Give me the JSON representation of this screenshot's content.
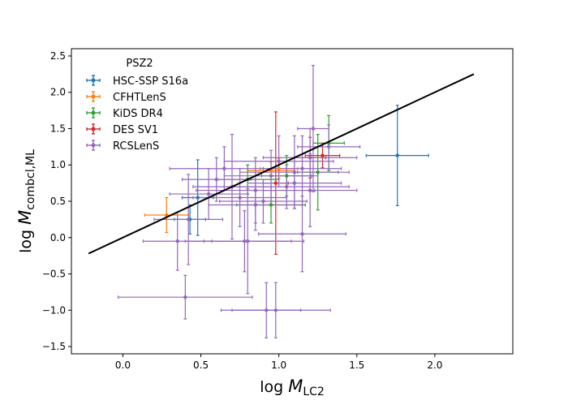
{
  "chart_data": {
    "type": "scatter",
    "title": "",
    "xlabel_main": "log ",
    "xlabel_var": "M",
    "xlabel_sub": "LC2",
    "ylabel_main": "log ",
    "ylabel_var": "M",
    "ylabel_sub": "combcl,ML",
    "xlim": [
      -0.33,
      2.5
    ],
    "ylim": [
      -1.6,
      2.6
    ],
    "xticks": [
      0.0,
      0.5,
      1.0,
      1.5,
      2.0
    ],
    "xtick_labels": [
      "0.0",
      "0.5",
      "1.0",
      "1.5",
      "2.0"
    ],
    "yticks": [
      -1.5,
      -1.0,
      -0.5,
      0.0,
      0.5,
      1.0,
      1.5,
      2.0,
      2.5
    ],
    "ytick_labels": [
      "−1.5",
      "−1.0",
      "−0.5",
      "0.0",
      "0.5",
      "1.0",
      "1.5",
      "2.0",
      "2.5"
    ],
    "grid": false,
    "legend": {
      "title": "PSZ2",
      "placement": "upper-left",
      "entries": [
        "HSC-SSP S16a",
        "CFHTLenS",
        "KiDS DR4",
        "DES SV1",
        "RCSLenS"
      ]
    },
    "reference_line": {
      "x": [
        -0.22,
        2.25
      ],
      "y": [
        -0.22,
        2.25
      ],
      "color": "#000000"
    },
    "series": [
      {
        "name": "HSC-SSP S16a",
        "color": "#1f77b4",
        "points": [
          {
            "x": 1.76,
            "y": 1.13,
            "xerr": 0.2,
            "yerr": 0.69
          },
          {
            "x": 0.48,
            "y": 0.55,
            "xerr": 0.1,
            "yerr": 0.52
          },
          {
            "x": 0.43,
            "y": 0.25,
            "xerr": 0.1,
            "yerr": 0.2
          }
        ]
      },
      {
        "name": "CFHTLenS",
        "color": "#ff7f0e",
        "points": [
          {
            "x": 0.28,
            "y": 0.31,
            "xerr": 0.14,
            "yerr": 0.24
          },
          {
            "x": 0.95,
            "y": 0.92,
            "xerr": 0.15,
            "yerr": 0.12
          },
          {
            "x": 1.0,
            "y": 0.95,
            "xerr": 0.12,
            "yerr": 0.14
          }
        ]
      },
      {
        "name": "KiDS DR4",
        "color": "#2ca02c",
        "points": [
          {
            "x": 0.95,
            "y": 0.45,
            "xerr": 0.22,
            "yerr": 0.25
          },
          {
            "x": 1.25,
            "y": 0.9,
            "xerr": 0.13,
            "yerr": 0.52
          },
          {
            "x": 1.32,
            "y": 1.3,
            "xerr": 0.1,
            "yerr": 0.38
          },
          {
            "x": 1.05,
            "y": 0.85,
            "xerr": 0.16,
            "yerr": 0.28
          },
          {
            "x": 0.8,
            "y": 0.8,
            "xerr": 0.2,
            "yerr": 0.2
          }
        ]
      },
      {
        "name": "DES SV1",
        "color": "#d62728",
        "points": [
          {
            "x": 1.28,
            "y": 1.13,
            "xerr": 0.11,
            "yerr": 0.17
          },
          {
            "x": 0.98,
            "y": 0.75,
            "xerr": 0.08,
            "yerr": 0.98
          },
          {
            "x": 1.2,
            "y": 1.1,
            "xerr": 0.1,
            "yerr": 0.28
          }
        ]
      },
      {
        "name": "RCSLenS",
        "color": "#9467bd",
        "points": [
          {
            "x": 0.4,
            "y": -0.82,
            "xerr": 0.43,
            "yerr": 0.3
          },
          {
            "x": 0.92,
            "y": -1.0,
            "xerr": 0.22,
            "yerr": 0.38
          },
          {
            "x": 0.98,
            "y": -1.0,
            "xerr": 0.35,
            "yerr": 0.38
          },
          {
            "x": 0.35,
            "y": -0.05,
            "xerr": 0.22,
            "yerr": 0.4
          },
          {
            "x": 0.42,
            "y": 0.25,
            "xerr": 0.22,
            "yerr": 0.62
          },
          {
            "x": 0.78,
            "y": -0.05,
            "xerr": 0.38,
            "yerr": 0.42
          },
          {
            "x": 0.8,
            "y": -0.05,
            "xerr": 0.28,
            "yerr": 0.72
          },
          {
            "x": 1.15,
            "y": 0.05,
            "xerr": 0.28,
            "yerr": 0.52
          },
          {
            "x": 0.7,
            "y": 0.7,
            "xerr": 0.25,
            "yerr": 0.72
          },
          {
            "x": 0.85,
            "y": 0.65,
            "xerr": 0.38,
            "yerr": 0.45
          },
          {
            "x": 0.6,
            "y": 0.8,
            "xerr": 0.22,
            "yerr": 0.3
          },
          {
            "x": 0.9,
            "y": 0.5,
            "xerr": 0.28,
            "yerr": 0.3
          },
          {
            "x": 1.05,
            "y": 0.7,
            "xerr": 0.4,
            "yerr": 0.3
          },
          {
            "x": 1.1,
            "y": 0.9,
            "xerr": 0.35,
            "yerr": 0.5
          },
          {
            "x": 1.2,
            "y": 1.1,
            "xerr": 0.3,
            "yerr": 0.4
          },
          {
            "x": 1.22,
            "y": 1.5,
            "xerr": 0.1,
            "yerr": 0.87
          },
          {
            "x": 1.32,
            "y": 1.25,
            "xerr": 0.2,
            "yerr": 0.3
          },
          {
            "x": 1.15,
            "y": 0.95,
            "xerr": 0.25,
            "yerr": 0.45
          },
          {
            "x": 0.95,
            "y": 0.85,
            "xerr": 0.3,
            "yerr": 0.35
          },
          {
            "x": 0.75,
            "y": 0.55,
            "xerr": 0.3,
            "yerr": 0.4
          },
          {
            "x": 0.65,
            "y": 0.95,
            "xerr": 0.35,
            "yerr": 0.3
          },
          {
            "x": 1.0,
            "y": 1.05,
            "xerr": 0.35,
            "yerr": 0.35
          },
          {
            "x": 0.55,
            "y": 0.6,
            "xerr": 0.25,
            "yerr": 0.35
          },
          {
            "x": 1.1,
            "y": 0.75,
            "xerr": 0.3,
            "yerr": 0.35
          },
          {
            "x": 0.85,
            "y": 0.45,
            "xerr": 0.3,
            "yerr": 0.35
          },
          {
            "x": 1.2,
            "y": 0.65,
            "xerr": 0.3,
            "yerr": 0.5
          }
        ]
      }
    ]
  }
}
